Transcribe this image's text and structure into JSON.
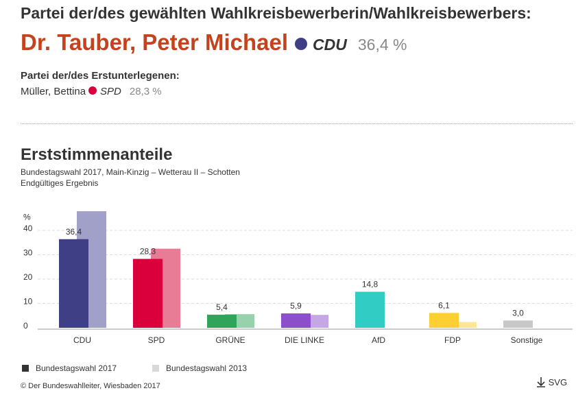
{
  "header": {
    "title": "Partei der/des gewählten Wahlkreisbewerberin/Wahlkreisbewerbers:",
    "winner": {
      "name": "Dr. Tauber, Peter Michael",
      "party": "CDU",
      "party_color": "#3f3f86",
      "share": "36,4 %"
    },
    "runner_up_label": "Partei der/des Erstunterlegenen:",
    "runner_up": {
      "name": "Müller, Bettina",
      "party": "SPD",
      "party_color": "#d9003c",
      "share": "28,3 %"
    }
  },
  "chart_data": {
    "type": "bar",
    "title": "Erststimmenanteile",
    "subtitle": [
      "Bundestagswahl 2017, Main-Kinzig – Wetterau II – Schotten",
      "Endgültiges Ergebnis"
    ],
    "y_label": "%",
    "categories": [
      "CDU",
      "SPD",
      "GRÜNE",
      "DIE LINKE",
      "AfD",
      "FDP",
      "Sonstige"
    ],
    "series": [
      {
        "name": "Bundestagswahl 2017",
        "color": "#333333",
        "colors": [
          "#3f3f86",
          "#d9003c",
          "#2fa55b",
          "#8b4fcb",
          "#31ccc4",
          "#fcd033",
          "#c8c8c8"
        ],
        "values": [
          36.4,
          28.3,
          5.4,
          5.9,
          14.8,
          6.1,
          3.0
        ],
        "value_labels": [
          "36,4",
          "28,3",
          "5,4",
          "5,9",
          "14,8",
          "6,1",
          "3,0"
        ]
      },
      {
        "name": "Bundestagswahl 2013",
        "color": "#d8d8d8",
        "colors": [
          "#a0a0c8",
          "#e87b96",
          "#98d2ad",
          "#c5a7e5",
          "#98e6e2",
          "#fde699",
          "#e3e3e3"
        ],
        "values": [
          47.9,
          32.5,
          5.6,
          5.3,
          null,
          2.4,
          null
        ]
      }
    ],
    "ylim": [
      0,
      50
    ],
    "yticks": [
      0,
      10,
      20,
      30,
      40
    ],
    "grid": true,
    "source": "© Der Bundeswahlleiter, Wiesbaden 2017",
    "download": "SVG"
  }
}
